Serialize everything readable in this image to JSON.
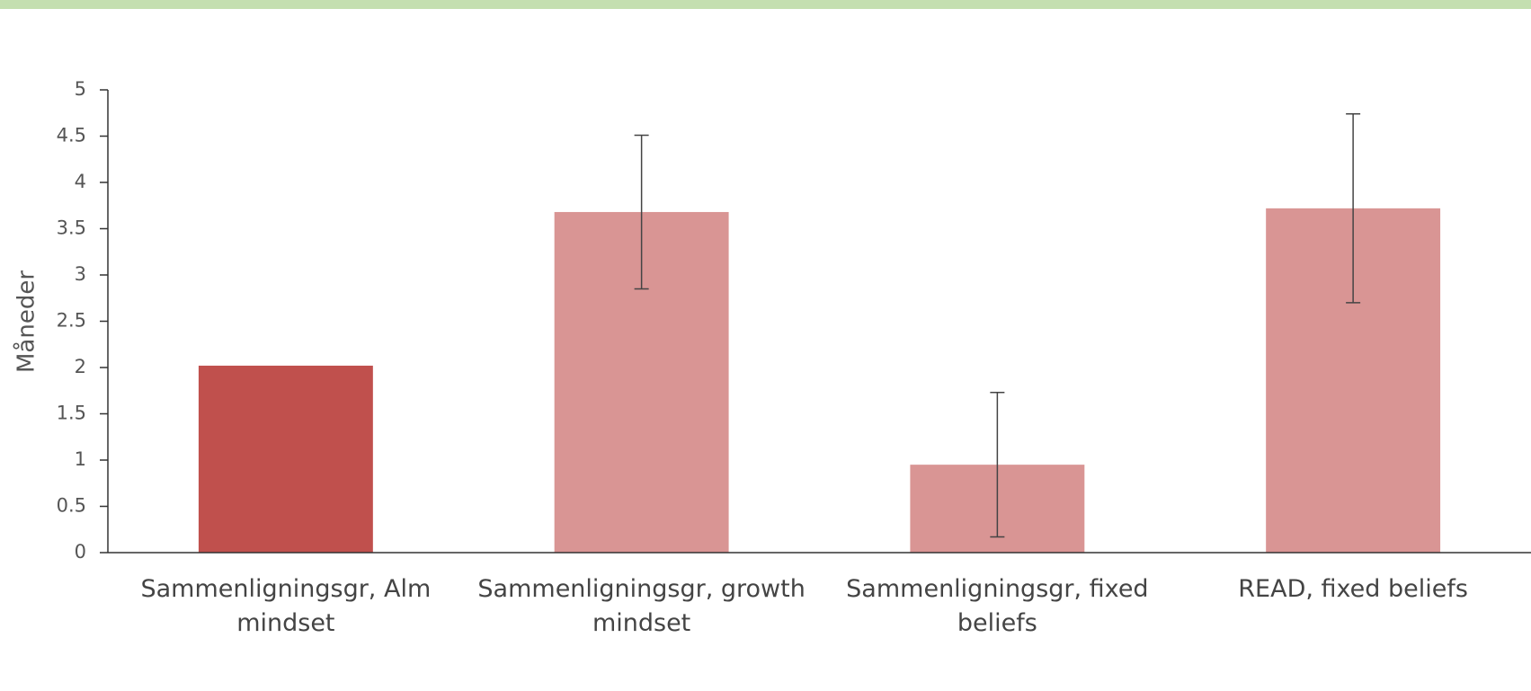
{
  "chart_data": {
    "type": "bar",
    "y_label": "Måneder",
    "categories": [
      "Sammenligningsgr, Alm mindset",
      "Sammenligningsgr, growth mindset",
      "Sammenligningsgr, fixed beliefs",
      "READ, fixed beliefs"
    ],
    "values": [
      2.02,
      3.68,
      0.95,
      3.72
    ],
    "errors": [
      null,
      0.83,
      0.78,
      1.02
    ],
    "colors": [
      "#c0504d",
      "#d99594",
      "#d99594",
      "#d99594"
    ],
    "ylim": [
      0,
      5
    ],
    "yticks": [
      0,
      0.5,
      1,
      1.5,
      2,
      2.5,
      3,
      3.5,
      4,
      4.5,
      5
    ],
    "grid": false
  }
}
